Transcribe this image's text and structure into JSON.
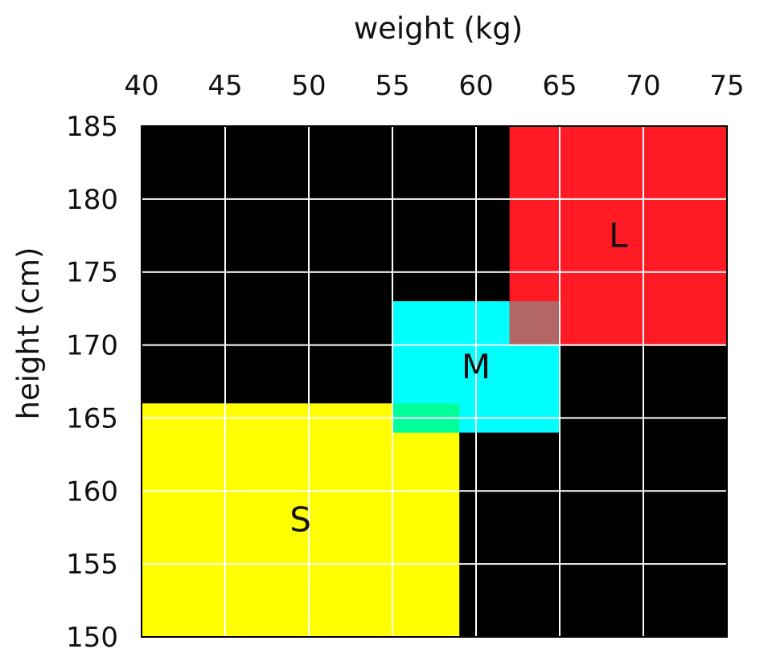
{
  "chart_data": {
    "type": "heatmap",
    "title": "",
    "xlabel": "weight (kg)",
    "ylabel": "height (cm)",
    "xlim": [
      40,
      75
    ],
    "ylim": [
      150,
      185
    ],
    "x_ticks": [
      40,
      45,
      50,
      55,
      60,
      65,
      70,
      75
    ],
    "y_ticks": [
      150,
      155,
      160,
      165,
      170,
      175,
      180,
      185
    ],
    "grid": true,
    "background_color": "#000000",
    "grid_color": "#ffffff",
    "regions": [
      {
        "label": "S",
        "x_range": [
          40,
          59
        ],
        "y_range": [
          150,
          166
        ],
        "color": "#ffff00"
      },
      {
        "label": "M",
        "x_range": [
          55,
          65
        ],
        "y_range": [
          164,
          173
        ],
        "color": "#00ffff"
      },
      {
        "label": "L",
        "x_range": [
          62,
          75
        ],
        "y_range": [
          170,
          185
        ],
        "color": "#ff1a24"
      }
    ],
    "overlaps": [
      {
        "x_range": [
          55,
          59
        ],
        "y_range": [
          164,
          166
        ],
        "color": "#00ff99"
      },
      {
        "x_range": [
          62,
          65
        ],
        "y_range": [
          170,
          173
        ],
        "color": "#b36666"
      }
    ]
  }
}
